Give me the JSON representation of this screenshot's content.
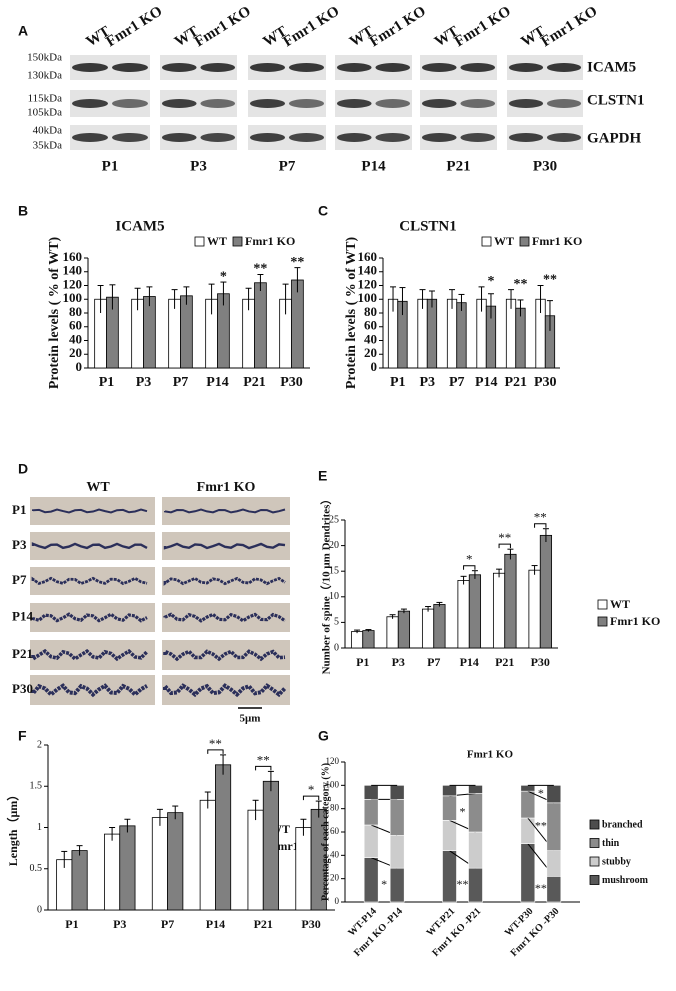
{
  "panel_a": {
    "label": "A",
    "lanes": [
      "WT",
      "Fmr1 KO"
    ],
    "markers": [
      "150kDa",
      "130kDa",
      "115kDa",
      "105kDa",
      "40kDa",
      "35kDa"
    ],
    "proteins": [
      "ICAM5",
      "CLSTN1",
      "GAPDH"
    ],
    "timepoints": [
      "P1",
      "P3",
      "P7",
      "P14",
      "P21",
      "P30"
    ]
  },
  "panel_d": {
    "label": "D",
    "columns": [
      "WT",
      "Fmr1 KO"
    ],
    "rows": [
      "P1",
      "P3",
      "P7",
      "P14",
      "P21",
      "P30"
    ],
    "scale": "5μm"
  },
  "chart_data": [
    {
      "panel": "B",
      "type": "bar",
      "title": "ICAM5",
      "y_label": "Protein levels ( % of WT)",
      "categories": [
        "P1",
        "P3",
        "P7",
        "P14",
        "P21",
        "P30"
      ],
      "series": [
        {
          "name": "WT",
          "color": "#ffffff",
          "values": [
            100,
            100,
            100,
            100,
            100,
            100
          ],
          "errors": [
            20,
            16,
            14,
            22,
            16,
            22
          ]
        },
        {
          "name": "Fmr1 KO",
          "color": "#808080",
          "values": [
            103,
            104,
            105,
            108,
            124,
            128
          ],
          "errors": [
            18,
            14,
            13,
            17,
            12,
            18
          ]
        }
      ],
      "annotations": [
        null,
        null,
        null,
        "*",
        "**",
        "**"
      ],
      "ylim": [
        0,
        160
      ],
      "yticks": [
        0,
        20,
        40,
        60,
        80,
        100,
        120,
        140,
        160
      ]
    },
    {
      "panel": "C",
      "type": "bar",
      "title": "CLSTN1",
      "y_label": "Protein levels ( % of WT)",
      "categories": [
        "P1",
        "P3",
        "P7",
        "P14",
        "P21",
        "P30"
      ],
      "series": [
        {
          "name": "WT",
          "color": "#ffffff",
          "values": [
            100,
            100,
            100,
            100,
            100,
            100
          ],
          "errors": [
            18,
            14,
            14,
            18,
            14,
            20
          ]
        },
        {
          "name": "Fmr1 KO",
          "color": "#808080",
          "values": [
            97,
            100,
            95,
            90,
            87,
            76
          ],
          "errors": [
            20,
            12,
            12,
            18,
            12,
            22
          ]
        }
      ],
      "annotations": [
        null,
        null,
        null,
        "*",
        "**",
        "**"
      ],
      "ylim": [
        0,
        160
      ],
      "yticks": [
        0,
        20,
        40,
        60,
        80,
        100,
        120,
        140,
        160
      ]
    },
    {
      "panel": "E",
      "type": "bar",
      "y_label": "Number of spine（/10 μm Dendrites）",
      "categories": [
        "P1",
        "P3",
        "P7",
        "P14",
        "P21",
        "P30"
      ],
      "series": [
        {
          "name": "WT",
          "color": "#ffffff",
          "values": [
            3.2,
            6.1,
            7.6,
            13.2,
            14.6,
            15.2
          ],
          "errors": [
            0.3,
            0.4,
            0.5,
            0.8,
            0.8,
            0.9
          ]
        },
        {
          "name": "Fmr1 KO",
          "color": "#808080",
          "values": [
            3.4,
            7.2,
            8.5,
            14.3,
            18.3,
            22.0
          ],
          "errors": [
            0.2,
            0.4,
            0.4,
            0.8,
            1.0,
            1.3
          ]
        }
      ],
      "annotations": [
        null,
        null,
        null,
        "*",
        "**",
        "**"
      ],
      "ylim": [
        0,
        25
      ],
      "yticks": [
        0,
        5,
        10,
        15,
        20,
        25
      ]
    },
    {
      "panel": "F",
      "type": "bar",
      "y_label": "Length（μm）",
      "categories": [
        "P1",
        "P3",
        "P7",
        "P14",
        "P21",
        "P30"
      ],
      "series": [
        {
          "name": "WT",
          "color": "#ffffff",
          "values": [
            0.61,
            0.92,
            1.12,
            1.33,
            1.21,
            1.0
          ],
          "errors": [
            0.1,
            0.08,
            0.1,
            0.1,
            0.12,
            0.1
          ]
        },
        {
          "name": "Fmr1 KO",
          "color": "#808080",
          "values": [
            0.72,
            1.02,
            1.18,
            1.76,
            1.56,
            1.22
          ],
          "errors": [
            0.06,
            0.08,
            0.08,
            0.12,
            0.12,
            0.1
          ]
        }
      ],
      "annotations": [
        null,
        null,
        null,
        "**",
        "**",
        "*"
      ],
      "ylim": [
        0,
        2
      ],
      "yticks": [
        0,
        0.5,
        1,
        1.5,
        2
      ]
    },
    {
      "panel": "G",
      "type": "stacked_bar",
      "title": "Fmr1 KO",
      "y_label": "Percentage of each category (%)",
      "categories": [
        "WT-P14",
        "Fmr1 KO -P14",
        "WT-P21",
        "Fmr1 KO -P21",
        "WT-P30",
        "Fmr1 KO -P30"
      ],
      "series": [
        {
          "name": "mushroom",
          "color": "#595959",
          "values": [
            38,
            29,
            44,
            29,
            50,
            22
          ],
          "annotations": [
            null,
            "*",
            null,
            "**",
            null,
            "**"
          ]
        },
        {
          "name": "stubby",
          "color": "#cccccc",
          "values": [
            28,
            28,
            26,
            31,
            22,
            22
          ]
        },
        {
          "name": "thin",
          "color": "#8c8c8c",
          "values": [
            22,
            31,
            21,
            33,
            23,
            41
          ],
          "annotations": [
            null,
            null,
            null,
            "*",
            null,
            "**"
          ]
        },
        {
          "name": "branched",
          "color": "#4d4d4d",
          "values": [
            12,
            12,
            9,
            7,
            5,
            15
          ],
          "annotations": [
            null,
            null,
            null,
            null,
            null,
            "*"
          ]
        }
      ],
      "ylim": [
        0,
        120
      ],
      "yticks": [
        0,
        20,
        40,
        60,
        80,
        100,
        120
      ]
    }
  ]
}
